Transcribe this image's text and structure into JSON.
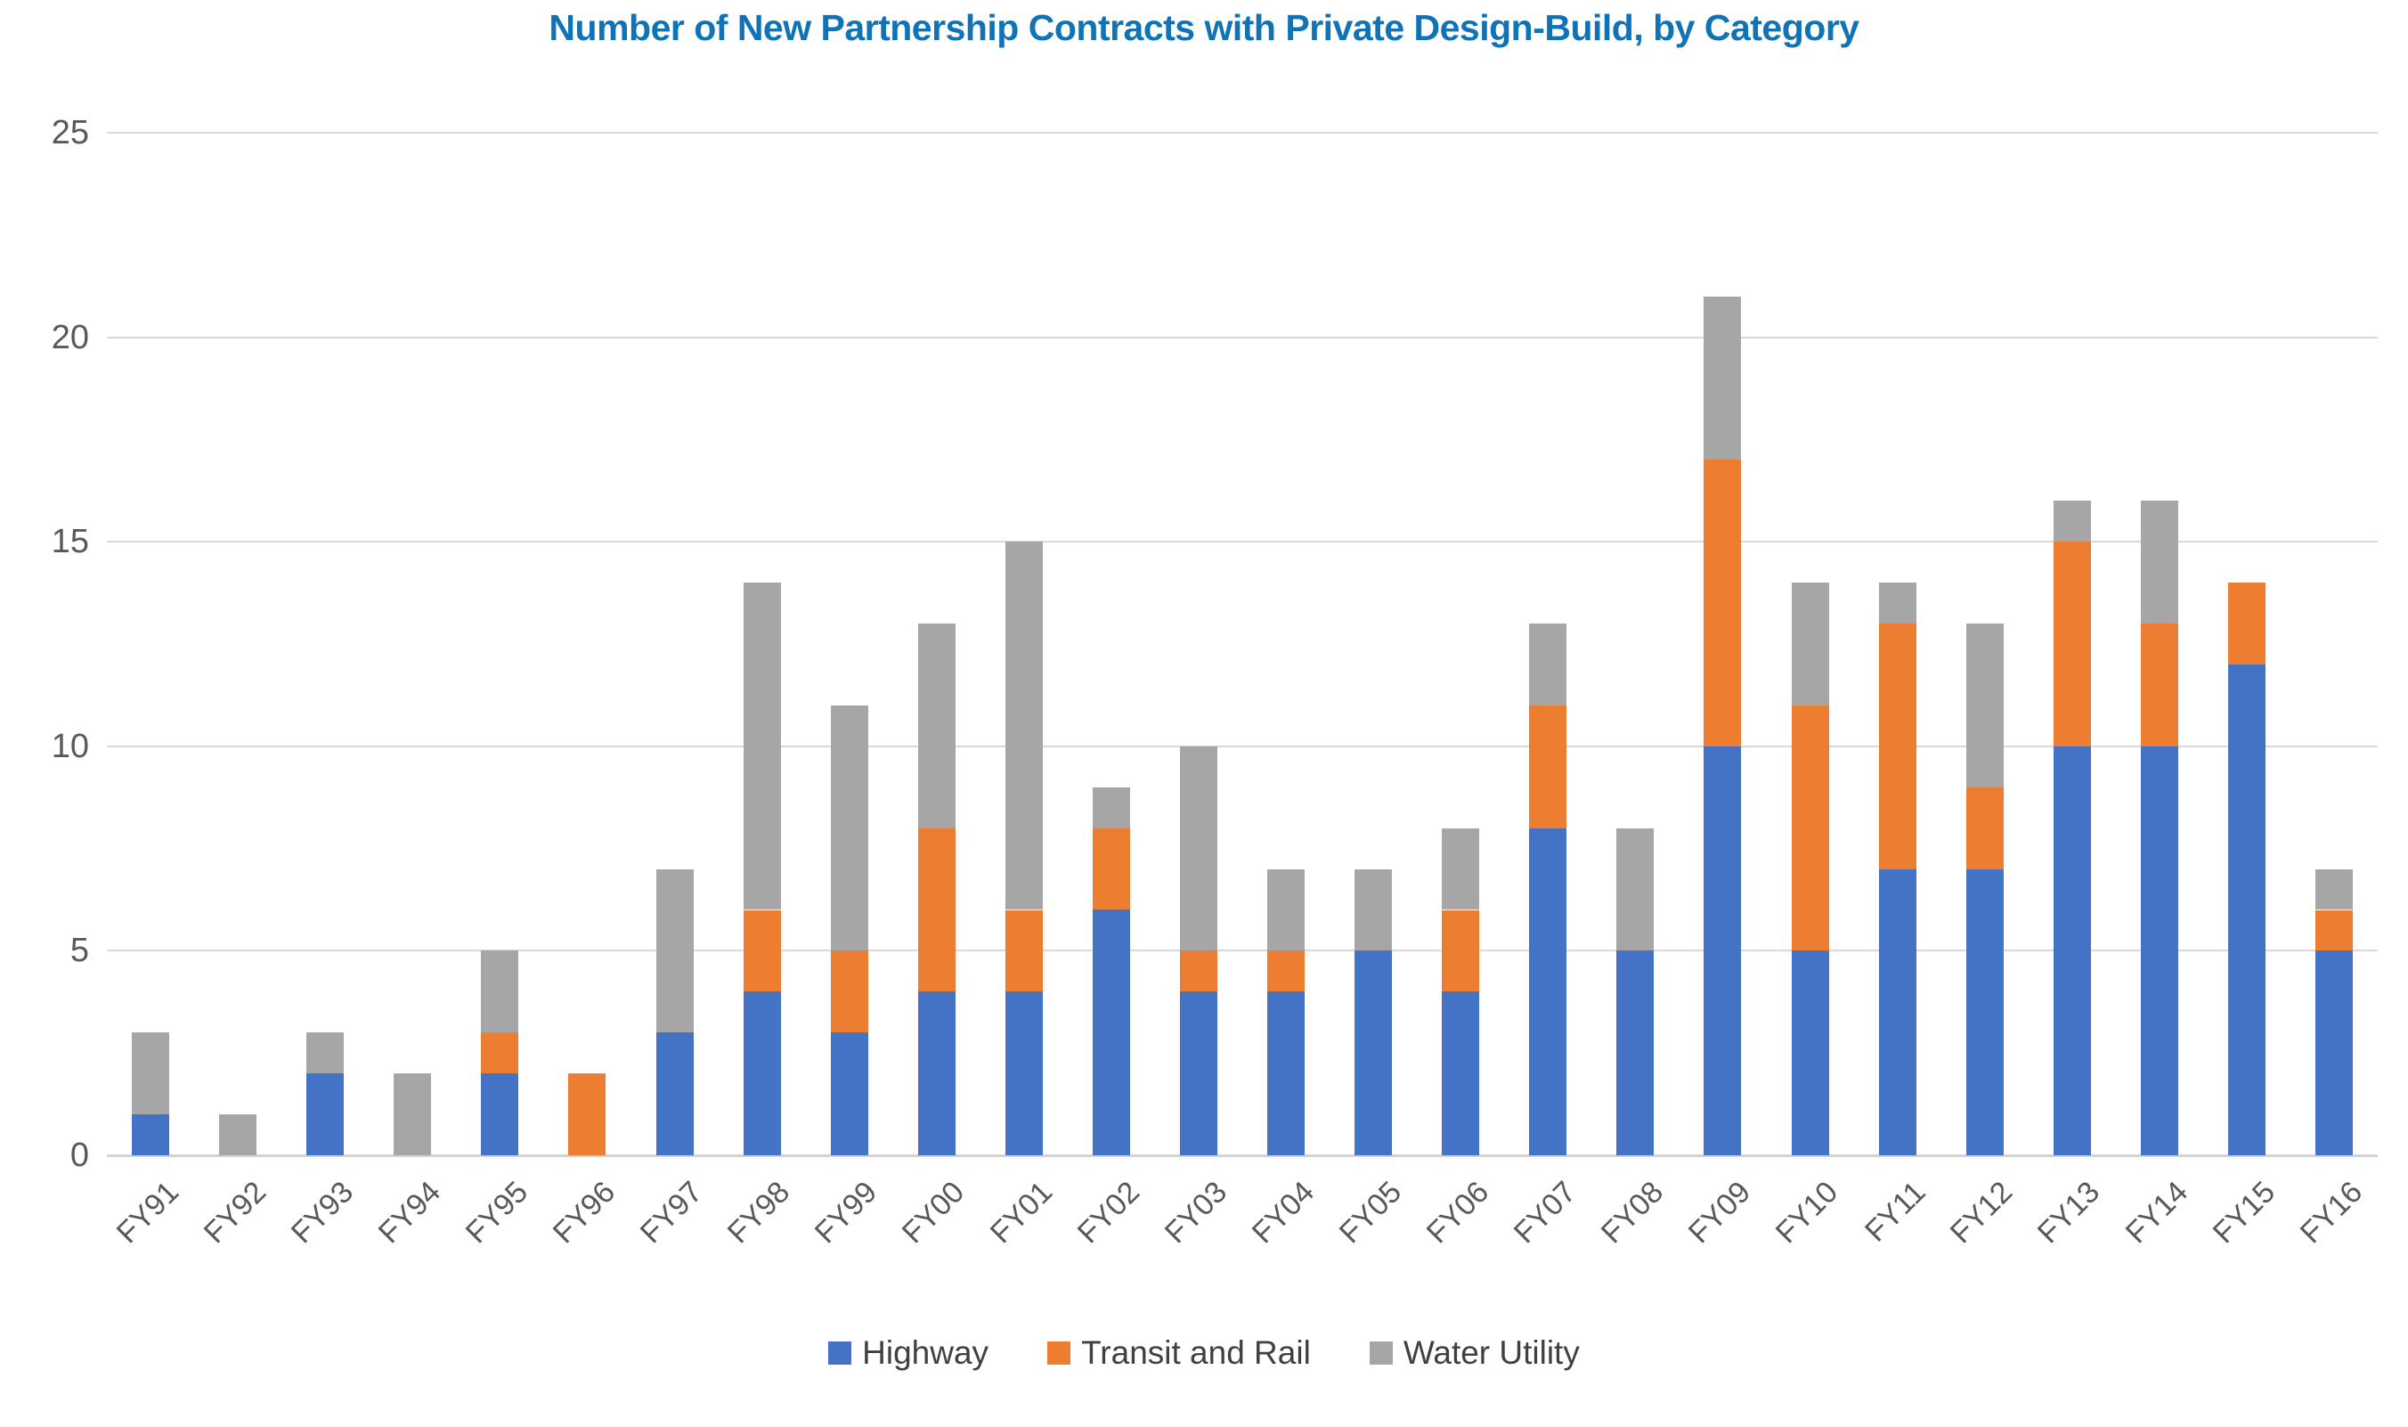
{
  "chart_data": {
    "type": "bar",
    "stacked": true,
    "title": "Number of New Partnership Contracts with Private Design-Build, by Category",
    "categories": [
      "FY91",
      "FY92",
      "FY93",
      "FY94",
      "FY95",
      "FY96",
      "FY97",
      "FY98",
      "FY99",
      "FY00",
      "FY01",
      "FY02",
      "FY03",
      "FY04",
      "FY05",
      "FY06",
      "FY07",
      "FY08",
      "FY09",
      "FY10",
      "FY11",
      "FY12",
      "FY13",
      "FY14",
      "FY15",
      "FY16"
    ],
    "series": [
      {
        "name": "Highway",
        "color": "#4472C4",
        "values": [
          1,
          0,
          2,
          0,
          2,
          0,
          3,
          4,
          3,
          4,
          4,
          6,
          4,
          4,
          5,
          4,
          8,
          5,
          10,
          5,
          7,
          7,
          10,
          10,
          12,
          5
        ]
      },
      {
        "name": "Transit and Rail",
        "color": "#ED7D31",
        "values": [
          0,
          0,
          0,
          0,
          1,
          2,
          0,
          2,
          2,
          4,
          2,
          2,
          1,
          1,
          0,
          2,
          3,
          0,
          7,
          6,
          6,
          2,
          5,
          3,
          2,
          1
        ]
      },
      {
        "name": "Water Utility",
        "color": "#A6A6A6",
        "values": [
          2,
          1,
          1,
          2,
          2,
          0,
          4,
          8,
          6,
          5,
          9,
          1,
          5,
          2,
          2,
          2,
          2,
          3,
          4,
          3,
          1,
          4,
          1,
          3,
          0,
          1
        ]
      }
    ],
    "y_ticks": [
      0,
      5,
      10,
      15,
      20,
      25
    ],
    "ylim": [
      0,
      25
    ],
    "grid": true,
    "legend_position": "bottom",
    "colors": {
      "title": "#0F73B6",
      "gridline": "#D9D9D9",
      "tick_label": "#595959",
      "legend_label": "#404040"
    }
  }
}
